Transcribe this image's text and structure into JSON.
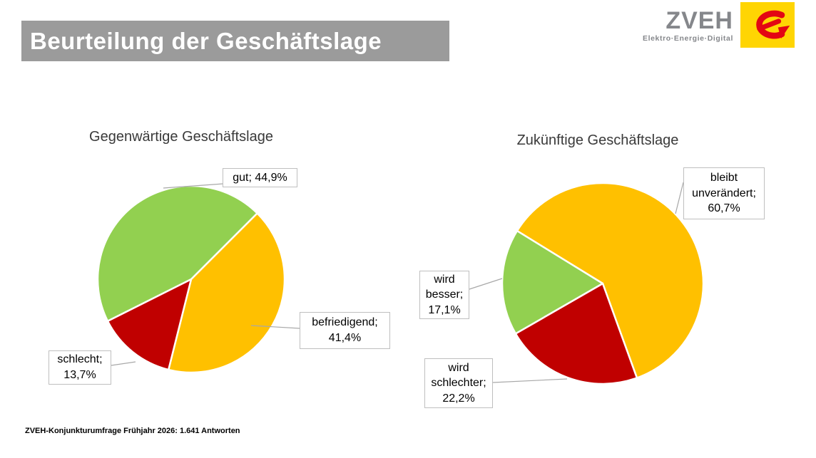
{
  "header": {
    "title": "Beurteilung der Geschäftslage"
  },
  "logo": {
    "name": "ZVEH",
    "tagline": "Elektro·Energie·Digital",
    "square_color": "#ffd503",
    "mark_color": "#e30613",
    "mark_icon": "zveh-e-arrow"
  },
  "colors": {
    "header_bar": "#9b9b9b",
    "pie_good": "#92D050",
    "pie_neutral": "#FFC000",
    "pie_bad": "#C00000",
    "callout_border": "#bfbfbf",
    "leader_line": "#a8a8a8"
  },
  "chart_data": [
    {
      "type": "pie",
      "title": "Gegenwärtige Geschäftslage",
      "unit": "%",
      "start_angle": 45,
      "legend_position": "callouts",
      "slices": [
        {
          "label": "befriedigend",
          "value": 41.4,
          "color": "#FFC000",
          "display": "befriedigend;\n41,4%"
        },
        {
          "label": "schlecht",
          "value": 13.7,
          "color": "#C00000",
          "display": "schlecht;\n13,7%"
        },
        {
          "label": "gut",
          "value": 44.9,
          "color": "#92D050",
          "display": "gut; 44,9%"
        }
      ]
    },
    {
      "type": "pie",
      "title": "Zukünftige Geschäftslage",
      "unit": "%",
      "start_angle": 301.6,
      "legend_position": "callouts",
      "slices": [
        {
          "label": "bleibt unverändert",
          "value": 60.7,
          "color": "#FFC000",
          "display": "bleibt\nunverändert;\n60,7%"
        },
        {
          "label": "wird schlechter",
          "value": 22.2,
          "color": "#C00000",
          "display": "wird\nschlechter;\n22,2%"
        },
        {
          "label": "wird besser",
          "value": 17.1,
          "color": "#92D050",
          "display": "wird\nbesser;\n17,1%"
        }
      ]
    }
  ],
  "footer": {
    "source": "ZVEH-Konjunkturumfrage Frühjahr 2026: 1.641 Antworten"
  }
}
